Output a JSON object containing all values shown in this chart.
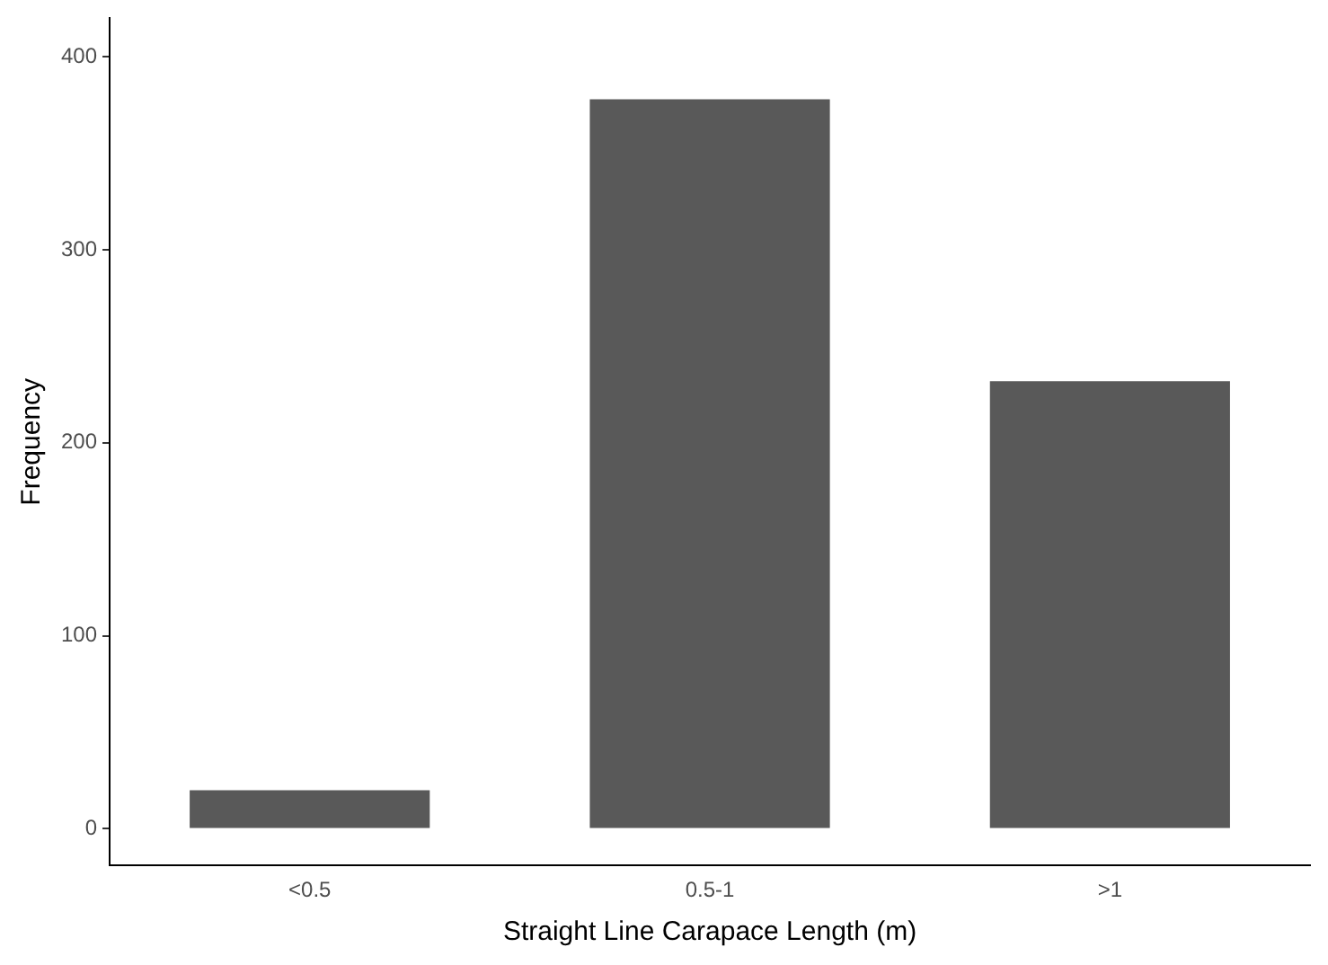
{
  "chart_data": {
    "type": "bar",
    "xlabel": "Straight Line Carapace Length (m)",
    "ylabel": "Frequency",
    "categories": [
      "<0.5",
      "0.5-1",
      ">1"
    ],
    "values": [
      20,
      378,
      232
    ],
    "color": "#595959",
    "ylim": [
      -19,
      420
    ],
    "yticks": [
      0,
      100,
      200,
      300,
      400
    ],
    "grid": false,
    "legend": false
  }
}
